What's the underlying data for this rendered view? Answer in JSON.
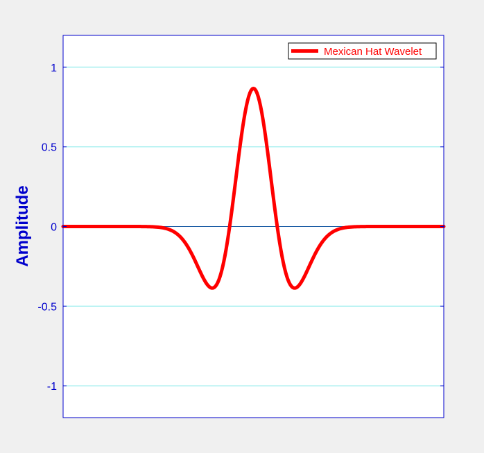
{
  "chart_data": {
    "type": "line",
    "title": "",
    "xlabel": "",
    "ylabel": "Amplitude",
    "xlim": [
      -8,
      8
    ],
    "ylim": [
      -1.2,
      1.2
    ],
    "yticks": [
      -1,
      -0.5,
      0,
      0.5,
      1
    ],
    "ytick_labels": [
      "-1",
      "-0.5",
      "0",
      "0.5",
      "1"
    ],
    "grid": true,
    "legend_position": "top-right",
    "colors": {
      "axis": "#0000cc",
      "grid": "#7fe9e9",
      "zero_line": "#1f5fa6",
      "series": "#ff0000",
      "plot_bg": "#ffffff",
      "figure_bg": "#f0f0f0"
    },
    "series": [
      {
        "name": "Mexican Hat Wavelet",
        "function": "mexican_hat",
        "peak": 0.867,
        "x_sample_step": 0.05
      }
    ]
  }
}
